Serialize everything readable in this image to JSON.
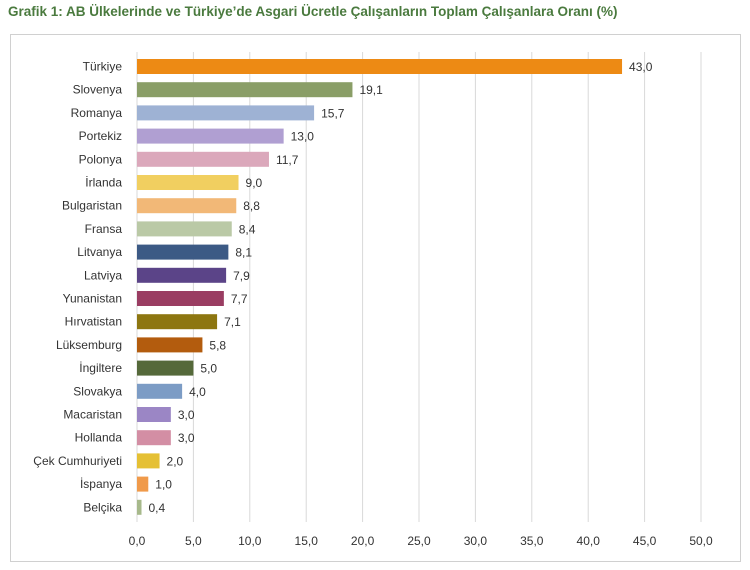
{
  "chart_data": {
    "type": "bar",
    "orientation": "horizontal",
    "title": "Grafik 1: AB Ülkelerinde ve Türkiye’de Asgari Ücretle Çalışanların Toplam Çalışanlara Oranı (%)",
    "xlabel": "",
    "ylabel": "",
    "xlim": [
      0,
      50
    ],
    "xticks": [
      "0,0",
      "5,0",
      "10,0",
      "15,0",
      "20,0",
      "25,0",
      "30,0",
      "35,0",
      "40,0",
      "45,0",
      "50,0"
    ],
    "grid": true,
    "categories": [
      "Türkiye",
      "Slovenya",
      "Romanya",
      "Portekiz",
      "Polonya",
      "İrlanda",
      "Bulgaristan",
      "Fransa",
      "Litvanya",
      "Latviya",
      "Yunanistan",
      "Hırvatistan",
      "Lüksemburg",
      "İngiltere",
      "Slovakya",
      "Macaristan",
      "Hollanda",
      "Çek Cumhuriyeti",
      "İspanya",
      "Belçika"
    ],
    "values": [
      43.0,
      19.1,
      15.7,
      13.0,
      11.7,
      9.0,
      8.8,
      8.4,
      8.1,
      7.9,
      7.7,
      7.1,
      5.8,
      5.0,
      4.0,
      3.0,
      3.0,
      2.0,
      1.0,
      0.4
    ],
    "value_labels": [
      "43,0",
      "19,1",
      "15,7",
      "13,0",
      "11,7",
      "9,0",
      "8,8",
      "8,4",
      "8,1",
      "7,9",
      "7,7",
      "7,1",
      "5,8",
      "5,0",
      "4,0",
      "3,0",
      "3,0",
      "2,0",
      "1,0",
      "0,4"
    ],
    "colors": [
      "#ed8a14",
      "#8a9e67",
      "#9eb2d4",
      "#b09fd2",
      "#dba8bb",
      "#f1cf60",
      "#f2b877",
      "#bac9a6",
      "#3c5a85",
      "#5b4488",
      "#9a3d62",
      "#8d7610",
      "#b35c0e",
      "#55693a",
      "#7c9cc5",
      "#9b86c5",
      "#d38ea4",
      "#e5c034",
      "#f09a4a",
      "#a7b98b"
    ]
  }
}
